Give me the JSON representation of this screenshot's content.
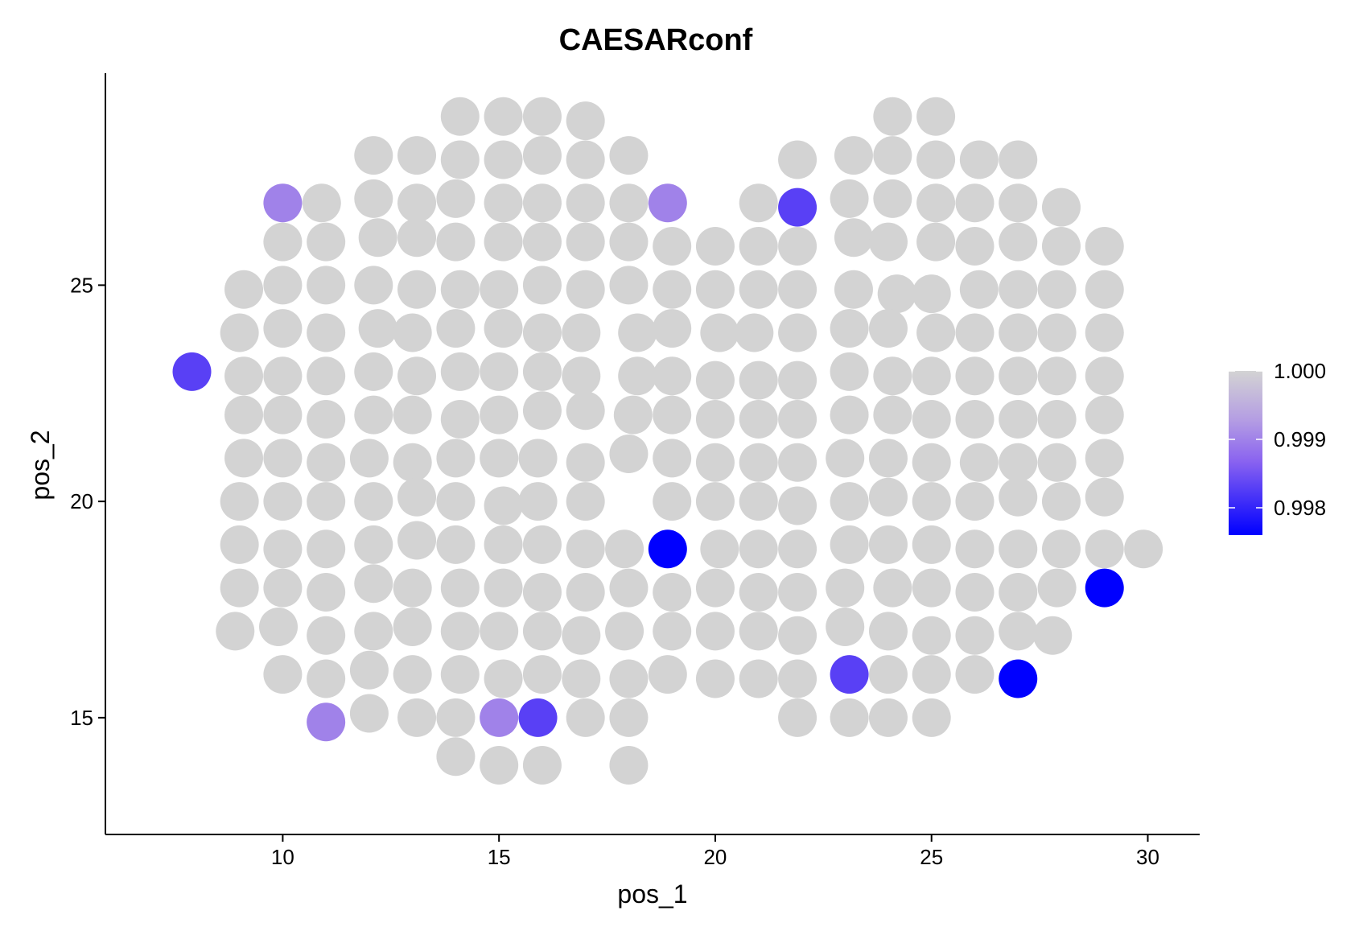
{
  "chart_data": {
    "type": "scatter",
    "title": "CAESARconf",
    "xlabel": "pos_1",
    "ylabel": "pos_2",
    "xlim": [
      5.9,
      31.2
    ],
    "ylim": [
      12.3,
      29.9
    ],
    "xticks": [
      10,
      15,
      20,
      25,
      30
    ],
    "yticks": [
      15,
      20,
      25
    ],
    "grid": false,
    "legend_position": "right",
    "point_color_default": "#d3d3d3",
    "legend": {
      "type": "colorbar",
      "min": 0.9976,
      "max": 1.0,
      "ticks": [
        1.0,
        0.999,
        0.998
      ],
      "tick_labels": [
        "1.000",
        "0.999",
        "0.998"
      ],
      "colors": [
        "#0000ff",
        "#d3d3d3"
      ]
    },
    "points_grey": [
      [
        14.1,
        28.9
      ],
      [
        15.1,
        28.9
      ],
      [
        16.0,
        28.9
      ],
      [
        17.0,
        28.8
      ],
      [
        24.1,
        28.9
      ],
      [
        25.1,
        28.9
      ],
      [
        12.1,
        28.0
      ],
      [
        13.1,
        28.0
      ],
      [
        14.1,
        27.9
      ],
      [
        15.1,
        27.9
      ],
      [
        16.0,
        28.0
      ],
      [
        17.0,
        27.9
      ],
      [
        18.0,
        28.0
      ],
      [
        21.9,
        27.9
      ],
      [
        23.2,
        28.0
      ],
      [
        24.1,
        28.0
      ],
      [
        25.1,
        27.9
      ],
      [
        26.1,
        27.9
      ],
      [
        27.0,
        27.9
      ],
      [
        10.9,
        26.9
      ],
      [
        12.1,
        27.0
      ],
      [
        13.1,
        26.9
      ],
      [
        14.0,
        27.0
      ],
      [
        15.1,
        26.9
      ],
      [
        16.0,
        26.9
      ],
      [
        17.0,
        26.9
      ],
      [
        18.0,
        26.9
      ],
      [
        21.0,
        26.9
      ],
      [
        23.1,
        27.0
      ],
      [
        24.1,
        27.0
      ],
      [
        25.1,
        26.9
      ],
      [
        26.0,
        26.9
      ],
      [
        27.0,
        26.9
      ],
      [
        28.0,
        26.8
      ],
      [
        10.0,
        26.0
      ],
      [
        11.0,
        26.0
      ],
      [
        12.2,
        26.1
      ],
      [
        13.1,
        26.1
      ],
      [
        14.0,
        26.0
      ],
      [
        15.1,
        26.0
      ],
      [
        16.0,
        26.0
      ],
      [
        17.0,
        26.0
      ],
      [
        18.0,
        26.0
      ],
      [
        19.0,
        25.9
      ],
      [
        20.0,
        25.9
      ],
      [
        21.0,
        25.9
      ],
      [
        21.9,
        25.9
      ],
      [
        23.2,
        26.1
      ],
      [
        24.0,
        26.0
      ],
      [
        25.1,
        26.0
      ],
      [
        26.0,
        25.9
      ],
      [
        27.0,
        26.0
      ],
      [
        28.0,
        25.9
      ],
      [
        29.0,
        25.9
      ],
      [
        9.1,
        24.9
      ],
      [
        10.0,
        25.0
      ],
      [
        11.0,
        25.0
      ],
      [
        12.1,
        25.0
      ],
      [
        13.1,
        24.9
      ],
      [
        14.1,
        24.9
      ],
      [
        15.0,
        24.9
      ],
      [
        16.0,
        25.0
      ],
      [
        17.0,
        24.9
      ],
      [
        18.0,
        25.0
      ],
      [
        19.0,
        24.9
      ],
      [
        20.0,
        24.9
      ],
      [
        21.0,
        24.9
      ],
      [
        21.9,
        24.9
      ],
      [
        23.2,
        24.9
      ],
      [
        24.2,
        24.8
      ],
      [
        25.0,
        24.8
      ],
      [
        26.1,
        24.9
      ],
      [
        27.0,
        24.9
      ],
      [
        27.9,
        24.9
      ],
      [
        29.0,
        24.9
      ],
      [
        9.0,
        23.9
      ],
      [
        10.0,
        24.0
      ],
      [
        11.0,
        23.9
      ],
      [
        12.2,
        24.0
      ],
      [
        13.0,
        23.9
      ],
      [
        14.0,
        24.0
      ],
      [
        15.1,
        24.0
      ],
      [
        16.0,
        23.9
      ],
      [
        16.9,
        23.9
      ],
      [
        18.2,
        23.9
      ],
      [
        19.0,
        24.0
      ],
      [
        20.1,
        23.9
      ],
      [
        20.9,
        23.9
      ],
      [
        21.9,
        23.9
      ],
      [
        23.1,
        24.0
      ],
      [
        24.0,
        24.0
      ],
      [
        25.1,
        23.9
      ],
      [
        26.0,
        23.9
      ],
      [
        27.0,
        23.9
      ],
      [
        27.9,
        23.9
      ],
      [
        29.0,
        23.9
      ],
      [
        9.1,
        22.9
      ],
      [
        10.0,
        22.9
      ],
      [
        11.0,
        22.9
      ],
      [
        12.1,
        23.0
      ],
      [
        13.1,
        22.9
      ],
      [
        14.1,
        23.0
      ],
      [
        15.0,
        23.0
      ],
      [
        16.0,
        23.0
      ],
      [
        16.9,
        22.9
      ],
      [
        18.2,
        22.9
      ],
      [
        19.0,
        22.9
      ],
      [
        20.0,
        22.8
      ],
      [
        21.0,
        22.8
      ],
      [
        21.9,
        22.8
      ],
      [
        23.1,
        23.0
      ],
      [
        24.1,
        22.9
      ],
      [
        25.0,
        22.9
      ],
      [
        26.0,
        22.9
      ],
      [
        27.0,
        22.9
      ],
      [
        27.9,
        22.9
      ],
      [
        29.0,
        22.9
      ],
      [
        9.1,
        22.0
      ],
      [
        10.0,
        22.0
      ],
      [
        11.0,
        21.9
      ],
      [
        12.1,
        22.0
      ],
      [
        13.0,
        22.0
      ],
      [
        14.1,
        21.9
      ],
      [
        15.0,
        22.0
      ],
      [
        16.0,
        22.1
      ],
      [
        17.0,
        22.1
      ],
      [
        18.1,
        22.0
      ],
      [
        19.0,
        22.0
      ],
      [
        20.0,
        21.9
      ],
      [
        21.0,
        21.9
      ],
      [
        21.9,
        21.9
      ],
      [
        23.1,
        22.0
      ],
      [
        24.1,
        22.0
      ],
      [
        25.0,
        21.9
      ],
      [
        26.0,
        21.9
      ],
      [
        27.0,
        21.9
      ],
      [
        27.9,
        21.9
      ],
      [
        29.0,
        22.0
      ],
      [
        9.1,
        21.0
      ],
      [
        10.0,
        21.0
      ],
      [
        11.0,
        20.9
      ],
      [
        12.0,
        21.0
      ],
      [
        13.0,
        20.9
      ],
      [
        14.0,
        21.0
      ],
      [
        15.0,
        21.0
      ],
      [
        15.9,
        21.0
      ],
      [
        17.0,
        20.9
      ],
      [
        18.0,
        21.1
      ],
      [
        19.0,
        21.0
      ],
      [
        20.0,
        20.9
      ],
      [
        21.0,
        20.9
      ],
      [
        21.9,
        20.9
      ],
      [
        23.0,
        21.0
      ],
      [
        24.0,
        21.0
      ],
      [
        25.0,
        20.9
      ],
      [
        26.1,
        20.9
      ],
      [
        27.0,
        20.9
      ],
      [
        27.9,
        20.9
      ],
      [
        29.0,
        21.0
      ],
      [
        9.0,
        20.0
      ],
      [
        10.0,
        20.0
      ],
      [
        11.0,
        20.0
      ],
      [
        12.1,
        20.0
      ],
      [
        13.1,
        20.1
      ],
      [
        14.0,
        20.0
      ],
      [
        15.1,
        19.9
      ],
      [
        15.9,
        20.0
      ],
      [
        17.0,
        20.0
      ],
      [
        19.0,
        20.0
      ],
      [
        20.0,
        20.0
      ],
      [
        21.0,
        20.0
      ],
      [
        21.9,
        19.9
      ],
      [
        23.1,
        20.0
      ],
      [
        24.0,
        20.1
      ],
      [
        25.0,
        20.0
      ],
      [
        26.0,
        20.0
      ],
      [
        27.0,
        20.1
      ],
      [
        28.0,
        20.0
      ],
      [
        29.0,
        20.1
      ],
      [
        9.0,
        19.0
      ],
      [
        10.0,
        18.9
      ],
      [
        11.0,
        18.9
      ],
      [
        12.1,
        19.0
      ],
      [
        13.1,
        19.1
      ],
      [
        14.0,
        19.0
      ],
      [
        15.1,
        19.0
      ],
      [
        16.0,
        19.0
      ],
      [
        17.0,
        18.9
      ],
      [
        17.9,
        18.9
      ],
      [
        20.1,
        18.9
      ],
      [
        21.0,
        18.9
      ],
      [
        21.9,
        18.9
      ],
      [
        23.1,
        19.0
      ],
      [
        24.0,
        19.0
      ],
      [
        25.0,
        19.0
      ],
      [
        26.0,
        18.9
      ],
      [
        27.0,
        18.9
      ],
      [
        28.0,
        18.9
      ],
      [
        29.0,
        18.9
      ],
      [
        29.9,
        18.9
      ],
      [
        9.0,
        18.0
      ],
      [
        10.0,
        18.0
      ],
      [
        11.0,
        17.9
      ],
      [
        12.1,
        18.1
      ],
      [
        13.0,
        18.0
      ],
      [
        14.1,
        18.0
      ],
      [
        15.1,
        18.0
      ],
      [
        16.0,
        17.9
      ],
      [
        17.0,
        17.9
      ],
      [
        18.0,
        18.0
      ],
      [
        19.0,
        17.9
      ],
      [
        20.0,
        18.0
      ],
      [
        21.0,
        17.9
      ],
      [
        21.9,
        17.9
      ],
      [
        23.0,
        18.0
      ],
      [
        24.1,
        18.0
      ],
      [
        25.0,
        18.0
      ],
      [
        26.0,
        17.9
      ],
      [
        27.0,
        17.9
      ],
      [
        27.9,
        18.0
      ],
      [
        8.9,
        17.0
      ],
      [
        9.9,
        17.1
      ],
      [
        11.0,
        16.9
      ],
      [
        12.1,
        17.0
      ],
      [
        13.0,
        17.1
      ],
      [
        14.1,
        17.0
      ],
      [
        15.0,
        17.0
      ],
      [
        16.0,
        17.0
      ],
      [
        16.9,
        16.9
      ],
      [
        17.9,
        17.0
      ],
      [
        19.0,
        17.0
      ],
      [
        20.0,
        17.0
      ],
      [
        21.0,
        17.0
      ],
      [
        21.9,
        16.9
      ],
      [
        23.0,
        17.1
      ],
      [
        24.0,
        17.0
      ],
      [
        25.0,
        16.9
      ],
      [
        26.0,
        16.9
      ],
      [
        27.0,
        17.0
      ],
      [
        27.8,
        16.9
      ],
      [
        10.0,
        16.0
      ],
      [
        11.0,
        15.9
      ],
      [
        12.0,
        16.1
      ],
      [
        13.0,
        16.0
      ],
      [
        14.1,
        16.0
      ],
      [
        15.1,
        15.9
      ],
      [
        16.0,
        16.0
      ],
      [
        16.9,
        15.9
      ],
      [
        18.0,
        15.9
      ],
      [
        18.9,
        16.0
      ],
      [
        20.0,
        15.9
      ],
      [
        21.0,
        15.9
      ],
      [
        21.9,
        15.9
      ],
      [
        24.0,
        16.0
      ],
      [
        25.0,
        16.0
      ],
      [
        26.0,
        16.0
      ],
      [
        12.0,
        15.1
      ],
      [
        13.1,
        15.0
      ],
      [
        14.0,
        15.0
      ],
      [
        17.0,
        15.0
      ],
      [
        18.0,
        15.0
      ],
      [
        21.9,
        15.0
      ],
      [
        23.1,
        15.0
      ],
      [
        24.0,
        15.0
      ],
      [
        25.0,
        15.0
      ],
      [
        14.0,
        14.1
      ],
      [
        15.0,
        13.9
      ],
      [
        16.0,
        13.9
      ],
      [
        18.0,
        13.9
      ]
    ],
    "points_colored": [
      {
        "x": 7.9,
        "y": 23.0,
        "value": 0.9983
      },
      {
        "x": 10.0,
        "y": 26.9,
        "value": 0.999
      },
      {
        "x": 18.9,
        "y": 26.9,
        "value": 0.999
      },
      {
        "x": 21.9,
        "y": 26.8,
        "value": 0.9983
      },
      {
        "x": 18.9,
        "y": 18.9,
        "value": 0.9976
      },
      {
        "x": 29.0,
        "y": 18.0,
        "value": 0.9976
      },
      {
        "x": 23.1,
        "y": 16.0,
        "value": 0.9983
      },
      {
        "x": 27.0,
        "y": 15.9,
        "value": 0.9976
      },
      {
        "x": 11.0,
        "y": 14.9,
        "value": 0.999
      },
      {
        "x": 15.0,
        "y": 15.0,
        "value": 0.999
      },
      {
        "x": 15.9,
        "y": 15.0,
        "value": 0.9983
      }
    ]
  }
}
